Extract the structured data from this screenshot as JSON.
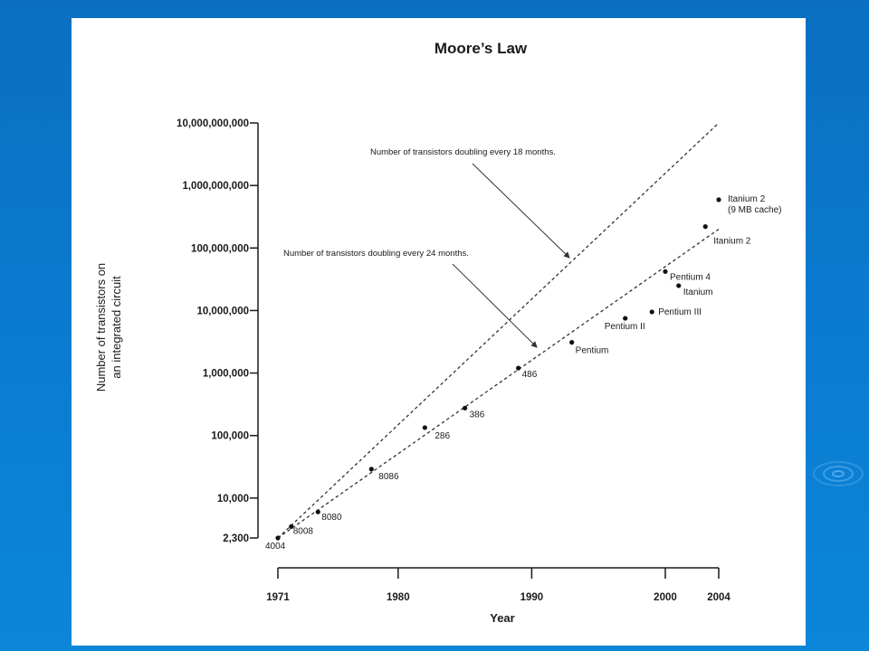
{
  "slide": {
    "background_color": "#0b7bd0",
    "panel_color": "#ffffff"
  },
  "chart_data": {
    "type": "scatter",
    "title": "Moore’s Law",
    "xlabel": "Year",
    "ylabel_lines": [
      "Number of transistors on",
      "an integrated circuit"
    ],
    "y_scale": "log",
    "x_ticks": [
      1971,
      1980,
      1990,
      2000,
      2004
    ],
    "x_tick_labels": [
      "1971",
      "1980",
      "1990",
      "2000",
      "2004"
    ],
    "y_ticks": [
      2300,
      10000,
      100000,
      1000000,
      10000000,
      100000000,
      1000000000,
      10000000000
    ],
    "y_tick_labels": [
      "2,300",
      "10,000",
      "100,000",
      "1,000,000",
      "10,000,000",
      "100,000,000",
      "1,000,000,000",
      "10,000,000,000"
    ],
    "xlim": [
      1971,
      2004
    ],
    "ylim": [
      2300,
      10000000000
    ],
    "grid": false,
    "points": [
      {
        "label": "4004",
        "x": 1971,
        "y": 2300
      },
      {
        "label": "8008",
        "x": 1972,
        "y": 3500
      },
      {
        "label": "8080",
        "x": 1974,
        "y": 6000
      },
      {
        "label": "8086",
        "x": 1978,
        "y": 29000
      },
      {
        "label": "286",
        "x": 1982,
        "y": 134000
      },
      {
        "label": "386",
        "x": 1985,
        "y": 275000
      },
      {
        "label": "486",
        "x": 1989,
        "y": 1200000
      },
      {
        "label": "Pentium",
        "x": 1993,
        "y": 3100000
      },
      {
        "label": "Pentium II",
        "x": 1997,
        "y": 7500000
      },
      {
        "label": "Pentium III",
        "x": 1999,
        "y": 9500000
      },
      {
        "label": "Pentium 4",
        "x": 2000,
        "y": 42000000
      },
      {
        "label": "Itanium",
        "x": 2001,
        "y": 25000000
      },
      {
        "label": "Itanium 2",
        "x": 2003,
        "y": 220000000
      },
      {
        "label": "Itanium 2\n(9 MB cache)",
        "x": 2004,
        "y": 592000000
      }
    ],
    "trend_lines": [
      {
        "name": "doubling every 18 months",
        "from": {
          "x": 1971,
          "y": 2300
        },
        "to": {
          "x": 2004,
          "y": 10000000000
        }
      },
      {
        "name": "doubling every 24 months",
        "from": {
          "x": 1971,
          "y": 2300
        },
        "to": {
          "x": 2004,
          "y": 200000000
        }
      }
    ],
    "annotations": [
      {
        "text": "Number of transistors doubling every 18 months."
      },
      {
        "text": "Number of transistors doubling every 24 months."
      }
    ]
  }
}
